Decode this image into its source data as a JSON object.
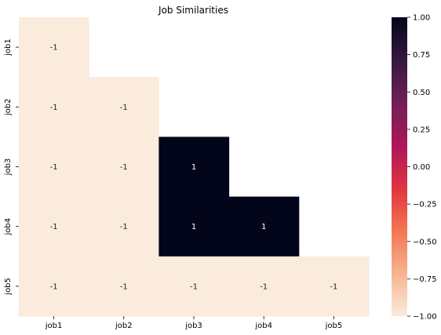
{
  "chart_data": {
    "type": "heatmap",
    "title": "Job Similarities",
    "rows": [
      "job1",
      "job2",
      "job3",
      "job4",
      "job5"
    ],
    "columns": [
      "job1",
      "job2",
      "job3",
      "job4",
      "job5"
    ],
    "mask": "upper-triangle",
    "values": [
      [
        -1,
        null,
        null,
        null,
        null
      ],
      [
        -1,
        -1,
        null,
        null,
        null
      ],
      [
        -1,
        -1,
        1,
        null,
        null
      ],
      [
        -1,
        -1,
        1,
        1,
        null
      ],
      [
        -1,
        -1,
        -1,
        -1,
        -1
      ]
    ],
    "annotations": true,
    "colorbar": {
      "vmin": -1.0,
      "vmax": 1.0,
      "ticks": [
        1.0,
        0.75,
        0.5,
        0.25,
        0.0,
        -0.25,
        -0.5,
        -0.75,
        -1.0
      ],
      "tick_labels": [
        "1.00",
        "0.75",
        "0.50",
        "0.25",
        "0.00",
        "−0.25",
        "−0.50",
        "−0.75",
        "−1.00"
      ],
      "colormap": "rocket_r",
      "stops": [
        "#faebdd",
        "#f6b48f",
        "#f37651",
        "#e13342",
        "#ad1759",
        "#701f57",
        "#35193e",
        "#03051a"
      ]
    },
    "xlabel": "",
    "ylabel": ""
  }
}
